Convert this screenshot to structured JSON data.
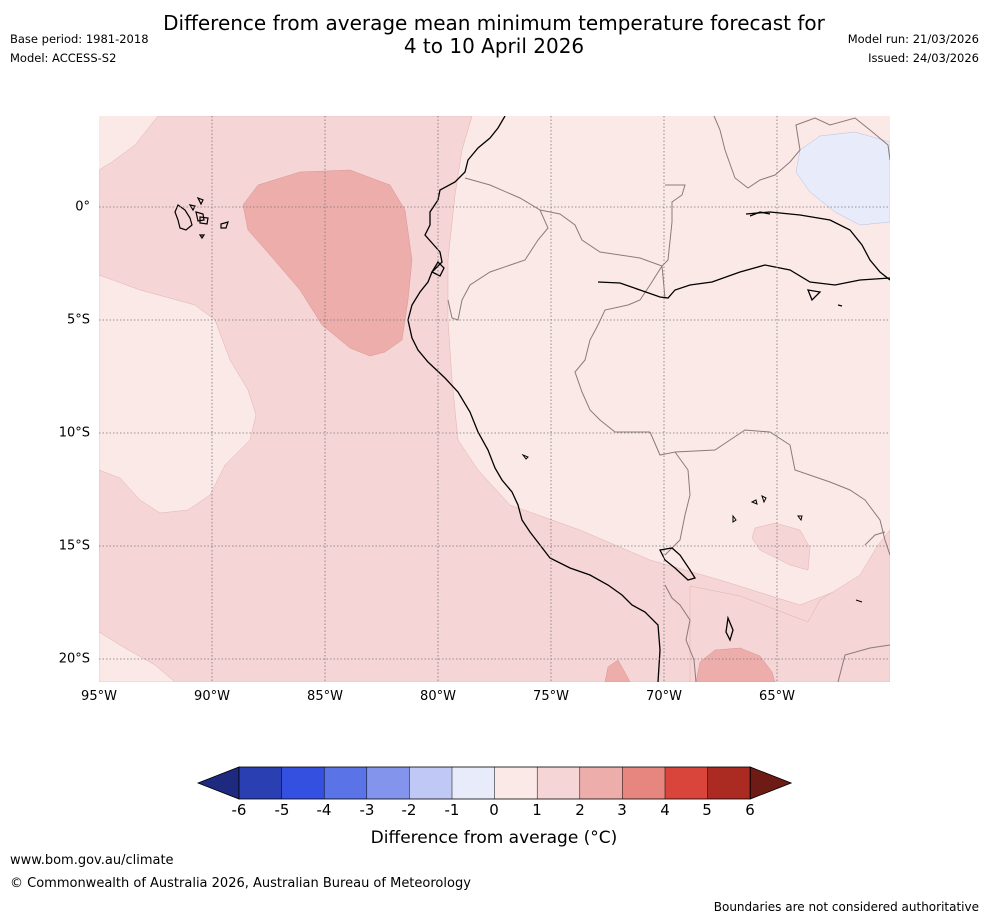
{
  "header": {
    "title_line1": "Difference from average mean minimum temperature forecast for",
    "title_line2": "4 to 10 April 2026",
    "base_period": "Base period: 1981-2018",
    "model": "Model: ACCESS-S2",
    "model_run": "Model run: 21/03/2026",
    "issued": "Issued: 24/03/2026"
  },
  "map": {
    "lat_labels": [
      "0°",
      "5°S",
      "10°S",
      "15°S",
      "20°S"
    ],
    "lon_labels": [
      "95°W",
      "90°W",
      "85°W",
      "80°W",
      "75°W",
      "70°W",
      "65°W"
    ]
  },
  "colorbar": {
    "ticks": [
      "-6",
      "-5",
      "-4",
      "-3",
      "-2",
      "-1",
      "0",
      "1",
      "2",
      "3",
      "4",
      "5",
      "6"
    ],
    "colors": [
      "#1d2a80",
      "#2a3fb2",
      "#3450e0",
      "#5a73e6",
      "#8294ec",
      "#c0c8f5",
      "#e8ebfa",
      "#fbe9e8",
      "#f5d5d5",
      "#edaeab",
      "#e6867e",
      "#d9453b",
      "#ab2a22",
      "#6e1b16"
    ],
    "title": "Difference from average (°C)"
  },
  "footer": {
    "url": "www.bom.gov.au/climate",
    "copyright": "© Commonwealth of Australia 2026, Australian Bureau of Meteorology",
    "disclaimer": "Boundaries are not considered authoritative"
  }
}
